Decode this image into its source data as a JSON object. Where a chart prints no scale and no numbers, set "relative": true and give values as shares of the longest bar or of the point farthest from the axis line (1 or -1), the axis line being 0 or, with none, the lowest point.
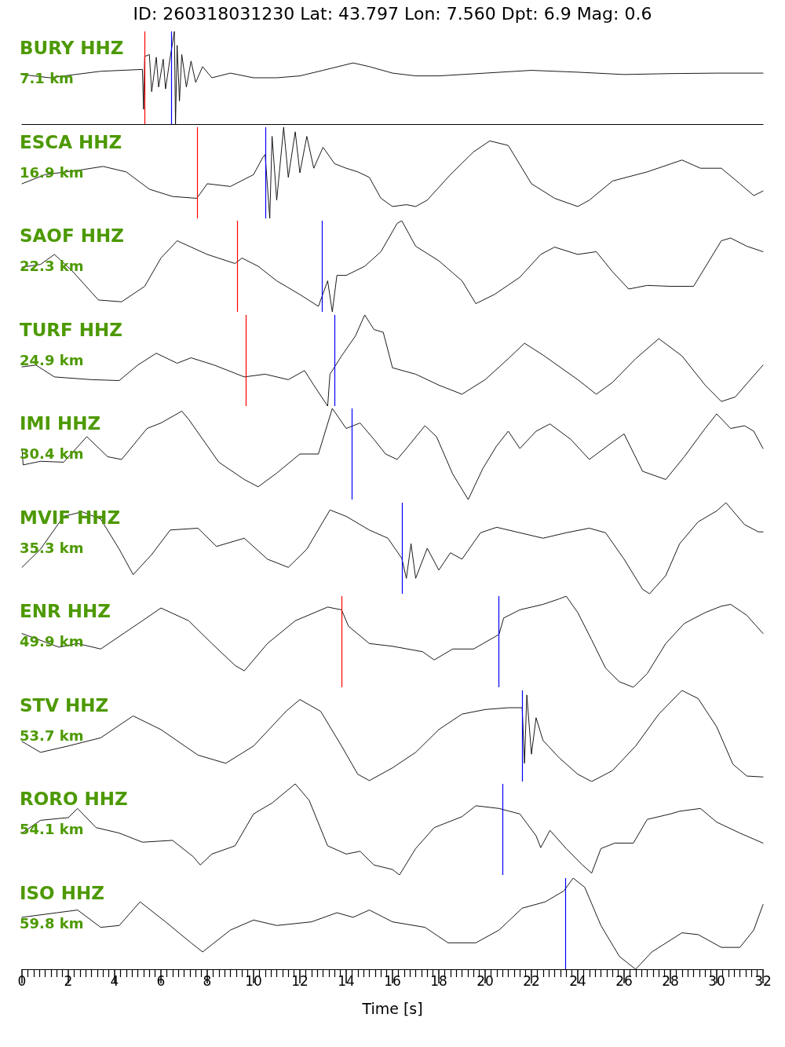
{
  "chart_data": [
    {
      "type": "line",
      "title": "BURY HHZ",
      "subtitle": "7.1 km",
      "annotations": [
        "ID: 260318031230 Lat: 43.797 Lon: 7.560 Dpt: 6.9 Mag: 0.6"
      ],
      "relative": true,
      "xlim": [
        0,
        32
      ],
      "tick_labels": false,
      "marker": "none",
      "series": [
        {
          "color": "#000000",
          "x": [
            0,
            1.2,
            3.4,
            5.2,
            5.25,
            5.3,
            5.5,
            5.6,
            5.8,
            5.9,
            6.1,
            6.2,
            6.4,
            6.58,
            6.63,
            6.7,
            6.8,
            6.9,
            7.1,
            7.3,
            7.5,
            7.8,
            8.2,
            9,
            10,
            11,
            12,
            13,
            14.3,
            15,
            16,
            17,
            18,
            20,
            22,
            24,
            26,
            28,
            30,
            32
          ],
          "values": [
            0.535,
            0.5,
            0.57,
            0.59,
            0.16,
            0.73,
            0.75,
            0.35,
            0.72,
            0.4,
            0.7,
            0.38,
            0.72,
            1.0,
            0.0,
            0.85,
            0.25,
            0.75,
            0.4,
            0.68,
            0.45,
            0.62,
            0.5,
            0.55,
            0.5,
            0.5,
            0.52,
            0.58,
            0.66,
            0.62,
            0.55,
            0.52,
            0.52,
            0.55,
            0.58,
            0.56,
            0.535,
            0.545,
            0.55,
            0.55
          ]
        }
      ],
      "ref_lines": [
        {
          "axis": "x",
          "value": 5.3,
          "color": "#ff0000"
        },
        {
          "axis": "x",
          "value": 6.46,
          "color": "#0000ff"
        }
      ]
    },
    {
      "type": "line",
      "title": "ESCA HHZ",
      "subtitle": "16.9 km",
      "relative": true,
      "xlim": [
        0,
        32
      ],
      "tick_labels": false,
      "marker": "none",
      "series": [
        {
          "color": "#000000",
          "x": [
            0,
            1,
            2.5,
            3.5,
            4.5,
            5.5,
            6.5,
            7.55,
            8,
            9,
            10,
            10.4,
            10.5,
            10.7,
            10.8,
            11,
            11.3,
            11.5,
            11.8,
            12,
            12.3,
            12.6,
            13,
            13.5,
            14,
            14.5,
            15,
            15.5,
            16,
            16.6,
            17,
            17.5,
            18.5,
            19.5,
            20.2,
            21,
            22,
            23,
            24,
            24.5,
            25.5,
            27,
            28.5,
            29.3,
            30.2,
            31,
            31.6,
            32
          ],
          "values": [
            0.38,
            0.48,
            0.53,
            0.57,
            0.51,
            0.32,
            0.24,
            0.22,
            0.38,
            0.35,
            0.48,
            0.67,
            0.7,
            0.0,
            0.9,
            0.2,
            1.0,
            0.45,
            0.95,
            0.5,
            0.9,
            0.55,
            0.78,
            0.6,
            0.55,
            0.51,
            0.45,
            0.22,
            0.13,
            0.15,
            0.13,
            0.2,
            0.48,
            0.73,
            0.85,
            0.8,
            0.38,
            0.22,
            0.13,
            0.2,
            0.41,
            0.51,
            0.64,
            0.55,
            0.55,
            0.38,
            0.25,
            0.3
          ]
        }
      ],
      "ref_lines": [
        {
          "axis": "x",
          "value": 7.57,
          "color": "#ff0000"
        },
        {
          "axis": "x",
          "value": 10.5,
          "color": "#0000ff"
        }
      ]
    },
    {
      "type": "line",
      "title": "SAOF HHZ",
      "subtitle": "22.3 km",
      "relative": true,
      "xlim": [
        0,
        32
      ],
      "tick_labels": false,
      "marker": "none",
      "series": [
        {
          "color": "#000000",
          "x": [
            0,
            0.8,
            1.4,
            2.2,
            3.3,
            4.3,
            5.3,
            6,
            6.7,
            8,
            9.2,
            9.5,
            10.2,
            11,
            12,
            12.8,
            13,
            13.2,
            13.4,
            13.6,
            14,
            14.8,
            15.5,
            16.2,
            16.4,
            17,
            18,
            19,
            19.6,
            20.4,
            21.5,
            22.4,
            23,
            24,
            24.8,
            25.5,
            26.2,
            27,
            28,
            29,
            30.2,
            30.6,
            31.3,
            32
          ],
          "values": [
            0.49,
            0.52,
            0.63,
            0.44,
            0.13,
            0.11,
            0.28,
            0.59,
            0.78,
            0.63,
            0.53,
            0.59,
            0.5,
            0.34,
            0.19,
            0.06,
            0.2,
            0.34,
            0.0,
            0.4,
            0.4,
            0.5,
            0.66,
            0.97,
            1.0,
            0.72,
            0.56,
            0.34,
            0.09,
            0.19,
            0.38,
            0.63,
            0.71,
            0.63,
            0.66,
            0.44,
            0.25,
            0.29,
            0.28,
            0.28,
            0.78,
            0.81,
            0.72,
            0.66
          ]
        }
      ],
      "ref_lines": [
        {
          "axis": "x",
          "value": 9.3,
          "color": "#ff0000"
        },
        {
          "axis": "x",
          "value": 12.95,
          "color": "#0000ff"
        }
      ]
    },
    {
      "type": "line",
      "title": "TURF HHZ",
      "subtitle": "24.9 km",
      "relative": true,
      "xlim": [
        0,
        32
      ],
      "tick_labels": false,
      "marker": "none",
      "series": [
        {
          "color": "#000000",
          "x": [
            0,
            0.6,
            1.4,
            3,
            4.2,
            5,
            5.8,
            6.7,
            7.3,
            8.3,
            9.6,
            10.5,
            11.5,
            12.2,
            12.6,
            13.2,
            13.3,
            13.8,
            14.4,
            14.8,
            15.2,
            15.6,
            16,
            17,
            18,
            19,
            20,
            21,
            21.7,
            22.5,
            24,
            24.8,
            25.5,
            26.5,
            27.5,
            28.5,
            29.5,
            30.2,
            30.8,
            32
          ],
          "values": [
            0.43,
            0.45,
            0.32,
            0.29,
            0.28,
            0.45,
            0.58,
            0.47,
            0.53,
            0.45,
            0.32,
            0.35,
            0.29,
            0.39,
            0.23,
            0.0,
            0.35,
            0.55,
            0.77,
            1.0,
            0.84,
            0.81,
            0.42,
            0.35,
            0.23,
            0.13,
            0.29,
            0.52,
            0.69,
            0.56,
            0.29,
            0.13,
            0.26,
            0.52,
            0.74,
            0.55,
            0.23,
            0.05,
            0.1,
            0.45
          ]
        }
      ],
      "ref_lines": [
        {
          "axis": "x",
          "value": 9.66,
          "color": "#ff0000"
        },
        {
          "axis": "x",
          "value": 13.51,
          "color": "#0000ff"
        }
      ]
    },
    {
      "type": "line",
      "title": "IMI HHZ",
      "subtitle": "30.4 km",
      "relative": true,
      "xlim": [
        0,
        32
      ],
      "tick_labels": false,
      "marker": "none",
      "series": [
        {
          "color": "#000000",
          "x": [
            0,
            0.05,
            0.8,
            1.8,
            2.8,
            3.7,
            4.3,
            5.4,
            6,
            6.9,
            7.2,
            8.5,
            9.6,
            10.2,
            11,
            12,
            12.8,
            13.4,
            14,
            14.6,
            15.2,
            15.7,
            16.2,
            16.6,
            17.4,
            17.9,
            18.6,
            19.27,
            19.9,
            20.5,
            21,
            21.5,
            22.2,
            22.8,
            23.7,
            24.5,
            25.5,
            26,
            26.8,
            27.8,
            28.6,
            29.5,
            30,
            30.6,
            31.2,
            31.6,
            32
          ],
          "values": [
            0.56,
            0.38,
            0.42,
            0.41,
            0.69,
            0.47,
            0.44,
            0.78,
            0.84,
            0.97,
            0.88,
            0.41,
            0.22,
            0.14,
            0.29,
            0.5,
            0.5,
            1.0,
            0.78,
            0.84,
            0.66,
            0.5,
            0.44,
            0.56,
            0.81,
            0.69,
            0.28,
            0.0,
            0.34,
            0.59,
            0.75,
            0.56,
            0.75,
            0.83,
            0.66,
            0.44,
            0.63,
            0.72,
            0.31,
            0.22,
            0.47,
            0.78,
            0.94,
            0.78,
            0.81,
            0.75,
            0.56
          ]
        }
      ],
      "ref_lines": [
        {
          "axis": "x",
          "value": 14.25,
          "color": "#0000ff"
        }
      ]
    },
    {
      "type": "line",
      "title": "MVIF HHZ",
      "subtitle": "35.3 km",
      "relative": true,
      "xlim": [
        0,
        32
      ],
      "tick_labels": false,
      "marker": "none",
      "series": [
        {
          "color": "#000000",
          "x": [
            0,
            0.8,
            1.8,
            2.6,
            3.4,
            4.2,
            4.8,
            5.6,
            6.4,
            7.6,
            8.4,
            9.6,
            10.6,
            11.5,
            12.3,
            13.3,
            14,
            15,
            15.8,
            16.4,
            16.6,
            16.8,
            17,
            17.5,
            18,
            18.5,
            19,
            19.8,
            20.5,
            21.5,
            22.5,
            23.5,
            24.5,
            25.2,
            26,
            26.8,
            27.1,
            27.8,
            28.4,
            29.2,
            30,
            30.4,
            31.2,
            31.8,
            32
          ],
          "values": [
            0.29,
            0.49,
            0.85,
            0.9,
            0.82,
            0.49,
            0.21,
            0.43,
            0.7,
            0.72,
            0.52,
            0.61,
            0.38,
            0.29,
            0.49,
            0.92,
            0.85,
            0.7,
            0.61,
            0.39,
            0.17,
            0.55,
            0.17,
            0.5,
            0.26,
            0.45,
            0.38,
            0.67,
            0.73,
            0.67,
            0.61,
            0.67,
            0.72,
            0.67,
            0.38,
            0.05,
            0.0,
            0.2,
            0.55,
            0.79,
            0.91,
            1.0,
            0.76,
            0.68,
            0.68
          ]
        }
      ],
      "ref_lines": [
        {
          "axis": "x",
          "value": 16.43,
          "color": "#0000ff"
        }
      ]
    },
    {
      "type": "line",
      "title": "ENR HHZ",
      "subtitle": "49.9 km",
      "relative": true,
      "xlim": [
        0,
        32
      ],
      "tick_labels": false,
      "marker": "none",
      "series": [
        {
          "color": "#000000",
          "x": [
            0,
            1.6,
            2.4,
            3.4,
            5.2,
            6,
            7.2,
            8.2,
            9.2,
            9.6,
            10.6,
            11.8,
            13.2,
            13.8,
            14.1,
            15,
            16,
            17.3,
            17.8,
            18.6,
            19.5,
            20.6,
            20.8,
            21.5,
            22.5,
            23.2,
            23.5,
            24,
            24.6,
            25.2,
            25.8,
            26.4,
            27,
            27.8,
            28.6,
            29.5,
            30.2,
            30.6,
            31.3,
            32
          ],
          "values": [
            0.59,
            0.44,
            0.48,
            0.42,
            0.73,
            0.87,
            0.73,
            0.48,
            0.24,
            0.18,
            0.48,
            0.73,
            0.88,
            0.85,
            0.67,
            0.48,
            0.45,
            0.39,
            0.3,
            0.42,
            0.42,
            0.58,
            0.76,
            0.85,
            0.91,
            0.97,
            1.0,
            0.82,
            0.52,
            0.21,
            0.06,
            0.0,
            0.15,
            0.48,
            0.7,
            0.82,
            0.89,
            0.91,
            0.79,
            0.59
          ]
        }
      ],
      "ref_lines": [
        {
          "axis": "x",
          "value": 13.79,
          "color": "#ff0000"
        },
        {
          "axis": "x",
          "value": 20.58,
          "color": "#0000ff"
        }
      ]
    },
    {
      "type": "line",
      "title": "STV HHZ",
      "subtitle": "53.7 km",
      "relative": true,
      "xlim": [
        0,
        32
      ],
      "tick_labels": false,
      "marker": "none",
      "series": [
        {
          "color": "#000000",
          "x": [
            0,
            0.8,
            2,
            3.4,
            4.8,
            6,
            7.6,
            8.8,
            10,
            11.4,
            12,
            12.9,
            13.8,
            14.5,
            15,
            16,
            17,
            18,
            19,
            20,
            21,
            21.6,
            21.7,
            21.8,
            22,
            22.2,
            22.5,
            23.2,
            24,
            24.6,
            25.5,
            26.5,
            27.5,
            28.5,
            29.2,
            30,
            30.7,
            31.3,
            32
          ],
          "values": [
            0.44,
            0.32,
            0.39,
            0.48,
            0.72,
            0.57,
            0.29,
            0.2,
            0.39,
            0.77,
            0.9,
            0.77,
            0.39,
            0.08,
            0.01,
            0.15,
            0.32,
            0.57,
            0.74,
            0.79,
            0.81,
            0.81,
            0.2,
            0.95,
            0.3,
            0.7,
            0.45,
            0.26,
            0.08,
            0.0,
            0.12,
            0.39,
            0.74,
            1.0,
            0.91,
            0.6,
            0.19,
            0.06,
            0.05
          ]
        }
      ],
      "ref_lines": [
        {
          "axis": "x",
          "value": 21.6,
          "color": "#0000ff"
        }
      ]
    },
    {
      "type": "line",
      "title": "RORO HHZ",
      "subtitle": "54.1 km",
      "relative": true,
      "xlim": [
        0,
        32
      ],
      "tick_labels": false,
      "marker": "none",
      "series": [
        {
          "color": "#000000",
          "x": [
            0,
            0.8,
            2,
            2.4,
            3.2,
            4.2,
            5.2,
            6.5,
            7.4,
            7.7,
            8.2,
            9.2,
            10,
            10.8,
            11.8,
            12.4,
            13.2,
            14,
            14.6,
            15.2,
            16,
            16.3,
            17,
            17.8,
            19,
            19.6,
            20.6,
            21.5,
            22.2,
            22.4,
            22.8,
            23.5,
            24.2,
            24.6,
            25,
            25.6,
            26.4,
            27,
            28,
            28.4,
            29.3,
            30,
            31,
            32
          ],
          "values": [
            0.46,
            0.6,
            0.63,
            0.73,
            0.52,
            0.46,
            0.36,
            0.38,
            0.2,
            0.11,
            0.23,
            0.32,
            0.67,
            0.79,
            1.0,
            0.82,
            0.32,
            0.23,
            0.26,
            0.11,
            0.06,
            0.0,
            0.29,
            0.52,
            0.64,
            0.76,
            0.73,
            0.67,
            0.43,
            0.3,
            0.49,
            0.29,
            0.11,
            0.02,
            0.29,
            0.35,
            0.35,
            0.61,
            0.67,
            0.7,
            0.73,
            0.58,
            0.46,
            0.35
          ]
        }
      ],
      "ref_lines": [
        {
          "axis": "x",
          "value": 20.74,
          "color": "#0000ff"
        }
      ]
    },
    {
      "type": "line",
      "title": "ISO HHZ",
      "subtitle": "59.8 km",
      "xlabel": "Time [s]",
      "relative": true,
      "xlim": [
        0,
        32
      ],
      "tick_labels": "x",
      "marker": "none",
      "xticks": [
        0,
        2,
        4,
        6,
        8,
        10,
        12,
        14,
        16,
        18,
        20,
        22,
        24,
        26,
        28,
        30,
        32,
        {
          "value": 0.25,
          "label": null
        },
        {
          "value": 0.5,
          "label": null
        },
        {
          "value": 0.75,
          "label": null
        },
        {
          "value": 1,
          "label": null
        },
        {
          "value": 1.25,
          "label": null
        },
        {
          "value": 1.5,
          "label": null
        },
        {
          "value": 1.75,
          "label": null
        },
        {
          "value": 2.25,
          "label": null
        },
        {
          "value": 2.5,
          "label": null
        },
        {
          "value": 2.75,
          "label": null
        },
        {
          "value": 3,
          "label": null
        },
        {
          "value": 3.25,
          "label": null
        },
        {
          "value": 3.5,
          "label": null
        },
        {
          "value": 3.75,
          "label": null
        },
        {
          "value": 4.25,
          "label": null
        },
        {
          "value": 4.5,
          "label": null
        },
        {
          "value": 4.75,
          "label": null
        },
        {
          "value": 5,
          "label": null
        },
        {
          "value": 5.25,
          "label": null
        },
        {
          "value": 5.5,
          "label": null
        },
        {
          "value": 5.75,
          "label": null
        },
        {
          "value": 6.25,
          "label": null
        },
        {
          "value": 6.5,
          "label": null
        },
        {
          "value": 6.75,
          "label": null
        },
        {
          "value": 7,
          "label": null
        },
        {
          "value": 7.25,
          "label": null
        },
        {
          "value": 7.5,
          "label": null
        },
        {
          "value": 7.75,
          "label": null
        },
        {
          "value": 8.25,
          "label": null
        },
        {
          "value": 8.5,
          "label": null
        },
        {
          "value": 8.75,
          "label": null
        },
        {
          "value": 9,
          "label": null
        },
        {
          "value": 9.25,
          "label": null
        },
        {
          "value": 9.5,
          "label": null
        },
        {
          "value": 9.75,
          "label": null
        },
        {
          "value": 10.25,
          "label": null
        },
        {
          "value": 10.5,
          "label": null
        },
        {
          "value": 10.75,
          "label": null
        },
        {
          "value": 11,
          "label": null
        },
        {
          "value": 11.25,
          "label": null
        },
        {
          "value": 11.5,
          "label": null
        },
        {
          "value": 11.75,
          "label": null
        },
        {
          "value": 12.25,
          "label": null
        },
        {
          "value": 12.5,
          "label": null
        },
        {
          "value": 12.75,
          "label": null
        },
        {
          "value": 13,
          "label": null
        },
        {
          "value": 13.25,
          "label": null
        },
        {
          "value": 13.5,
          "label": null
        },
        {
          "value": 13.75,
          "label": null
        },
        {
          "value": 14.25,
          "label": null
        },
        {
          "value": 14.5,
          "label": null
        },
        {
          "value": 14.75,
          "label": null
        },
        {
          "value": 15,
          "label": null
        },
        {
          "value": 15.25,
          "label": null
        },
        {
          "value": 15.5,
          "label": null
        },
        {
          "value": 15.75,
          "label": null
        },
        {
          "value": 16.25,
          "label": null
        },
        {
          "value": 16.5,
          "label": null
        },
        {
          "value": 16.75,
          "label": null
        },
        {
          "value": 17,
          "label": null
        },
        {
          "value": 17.25,
          "label": null
        },
        {
          "value": 17.5,
          "label": null
        },
        {
          "value": 17.75,
          "label": null
        },
        {
          "value": 18.25,
          "label": null
        },
        {
          "value": 18.5,
          "label": null
        },
        {
          "value": 18.75,
          "label": null
        },
        {
          "value": 19,
          "label": null
        },
        {
          "value": 19.25,
          "label": null
        },
        {
          "value": 19.5,
          "label": null
        },
        {
          "value": 19.75,
          "label": null
        },
        {
          "value": 20.25,
          "label": null
        },
        {
          "value": 20.5,
          "label": null
        },
        {
          "value": 20.75,
          "label": null
        },
        {
          "value": 21,
          "label": null
        },
        {
          "value": 21.25,
          "label": null
        },
        {
          "value": 21.5,
          "label": null
        },
        {
          "value": 21.75,
          "label": null
        },
        {
          "value": 22.25,
          "label": null
        },
        {
          "value": 22.5,
          "label": null
        },
        {
          "value": 22.75,
          "label": null
        },
        {
          "value": 23,
          "label": null
        },
        {
          "value": 23.25,
          "label": null
        },
        {
          "value": 23.5,
          "label": null
        },
        {
          "value": 23.75,
          "label": null
        },
        {
          "value": 24.25,
          "label": null
        },
        {
          "value": 24.5,
          "label": null
        },
        {
          "value": 24.75,
          "label": null
        },
        {
          "value": 25,
          "label": null
        },
        {
          "value": 25.25,
          "label": null
        },
        {
          "value": 25.5,
          "label": null
        },
        {
          "value": 25.75,
          "label": null
        },
        {
          "value": 26.25,
          "label": null
        },
        {
          "value": 26.5,
          "label": null
        },
        {
          "value": 26.75,
          "label": null
        },
        {
          "value": 27,
          "label": null
        },
        {
          "value": 27.25,
          "label": null
        },
        {
          "value": 27.5,
          "label": null
        },
        {
          "value": 27.75,
          "label": null
        },
        {
          "value": 28.25,
          "label": null
        },
        {
          "value": 28.5,
          "label": null
        },
        {
          "value": 28.75,
          "label": null
        },
        {
          "value": 29,
          "label": null
        },
        {
          "value": 29.25,
          "label": null
        },
        {
          "value": 29.5,
          "label": null
        },
        {
          "value": 29.75,
          "label": null
        },
        {
          "value": 30.25,
          "label": null
        },
        {
          "value": 30.5,
          "label": null
        },
        {
          "value": 30.75,
          "label": null
        },
        {
          "value": 31,
          "label": null
        },
        {
          "value": 31.25,
          "label": null
        },
        {
          "value": 31.5,
          "label": null
        },
        {
          "value": 31.75,
          "label": null
        }
      ],
      "series": [
        {
          "color": "#000000",
          "x": [
            0,
            1.5,
            2.4,
            3.4,
            4.2,
            5.1,
            6.2,
            7.3,
            7.8,
            9,
            10,
            11,
            12.5,
            13.6,
            14.3,
            15,
            16,
            17.4,
            18.4,
            19.6,
            20.6,
            21.6,
            22.6,
            23.4,
            23.8,
            24.3,
            25,
            25.8,
            26.5,
            27.2,
            28.5,
            29.2,
            30.2,
            31,
            31.6,
            32
          ],
          "values": [
            0.57,
            0.62,
            0.65,
            0.46,
            0.48,
            0.74,
            0.52,
            0.29,
            0.19,
            0.43,
            0.54,
            0.48,
            0.52,
            0.62,
            0.57,
            0.65,
            0.52,
            0.46,
            0.29,
            0.29,
            0.43,
            0.67,
            0.74,
            0.86,
            1.0,
            0.9,
            0.48,
            0.14,
            0.0,
            0.19,
            0.4,
            0.38,
            0.24,
            0.24,
            0.43,
            0.71
          ]
        }
      ],
      "ref_lines": [
        {
          "axis": "x",
          "value": 23.46,
          "color": "#0000ff"
        }
      ]
    }
  ]
}
